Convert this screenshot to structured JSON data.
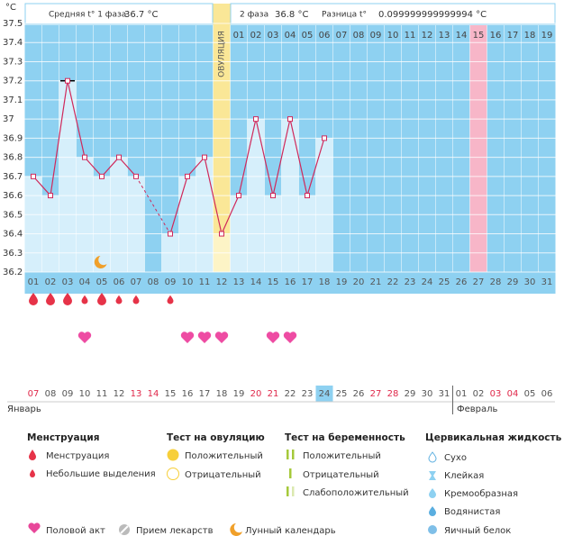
{
  "header": {
    "unit": "°C",
    "phase1_label": "Средняя t° 1 фаза",
    "phase1_value": "36.7 °C",
    "phase2_label": "2 фаза",
    "phase2_value": "36.8 °C",
    "difference_label": "Разница t°",
    "difference_value": "0.099999999999994 °C"
  },
  "chart": {
    "ylim": [
      36.2,
      37.5
    ],
    "yticks": [
      37.5,
      37.4,
      37.3,
      37.2,
      37.1,
      37,
      36.9,
      36.8,
      36.7,
      36.6,
      36.5,
      36.4,
      36.3,
      36.2
    ],
    "ovulation_label": "ОВУЛЯЦИЯ",
    "cycle_days": [
      "01",
      "02",
      "03",
      "04",
      "05",
      "06",
      "07",
      "08",
      "09",
      "10",
      "11",
      "12",
      "13",
      "14",
      "15",
      "16",
      "17",
      "18",
      "19",
      "20",
      "21",
      "22",
      "23",
      "24",
      "25",
      "26",
      "27",
      "28",
      "29",
      "30",
      "31"
    ],
    "phase2_days": [
      "01",
      "02",
      "03",
      "04",
      "05",
      "06",
      "07",
      "08",
      "09",
      "10",
      "11",
      "12",
      "13",
      "14",
      "15",
      "16",
      "17",
      "18",
      "19"
    ],
    "temperatures": [
      36.7,
      36.6,
      37.2,
      36.8,
      36.7,
      36.8,
      36.7,
      null,
      36.4,
      36.7,
      36.8,
      36.4,
      36.6,
      37.0,
      36.6,
      37.0,
      36.6,
      36.9,
      null,
      null,
      null,
      null,
      null,
      null,
      null,
      null,
      null,
      null,
      null,
      null,
      null
    ]
  },
  "calendar": {
    "dates": [
      "07",
      "08",
      "09",
      "10",
      "11",
      "12",
      "13",
      "14",
      "15",
      "16",
      "17",
      "18",
      "19",
      "20",
      "21",
      "22",
      "23",
      "24",
      "25",
      "26",
      "27",
      "28",
      "29",
      "30",
      "31",
      "01",
      "02",
      "03",
      "04",
      "05",
      "06"
    ],
    "months": [
      "Январь",
      "Февраль"
    ]
  },
  "legend": {
    "menstruation": {
      "title": "Менструация",
      "items": [
        "Менструация",
        "Небольшие выделения"
      ]
    },
    "ovulation_test": {
      "title": "Тест на овуляцию",
      "items": [
        "Положительный",
        "Отрицательный"
      ]
    },
    "pregnancy_test": {
      "title": "Тест на беременность",
      "items": [
        "Положительный",
        "Отрицательный",
        "Слабоположительный"
      ]
    },
    "cervical_fluid": {
      "title": "Цервикальная жидкость",
      "items": [
        "Сухо",
        "Клейкая",
        "Кремообразная",
        "Водянистая",
        "Яичный белок"
      ]
    },
    "other": [
      "Половой акт",
      "Прием лекарств",
      "Лунный календарь"
    ]
  }
}
